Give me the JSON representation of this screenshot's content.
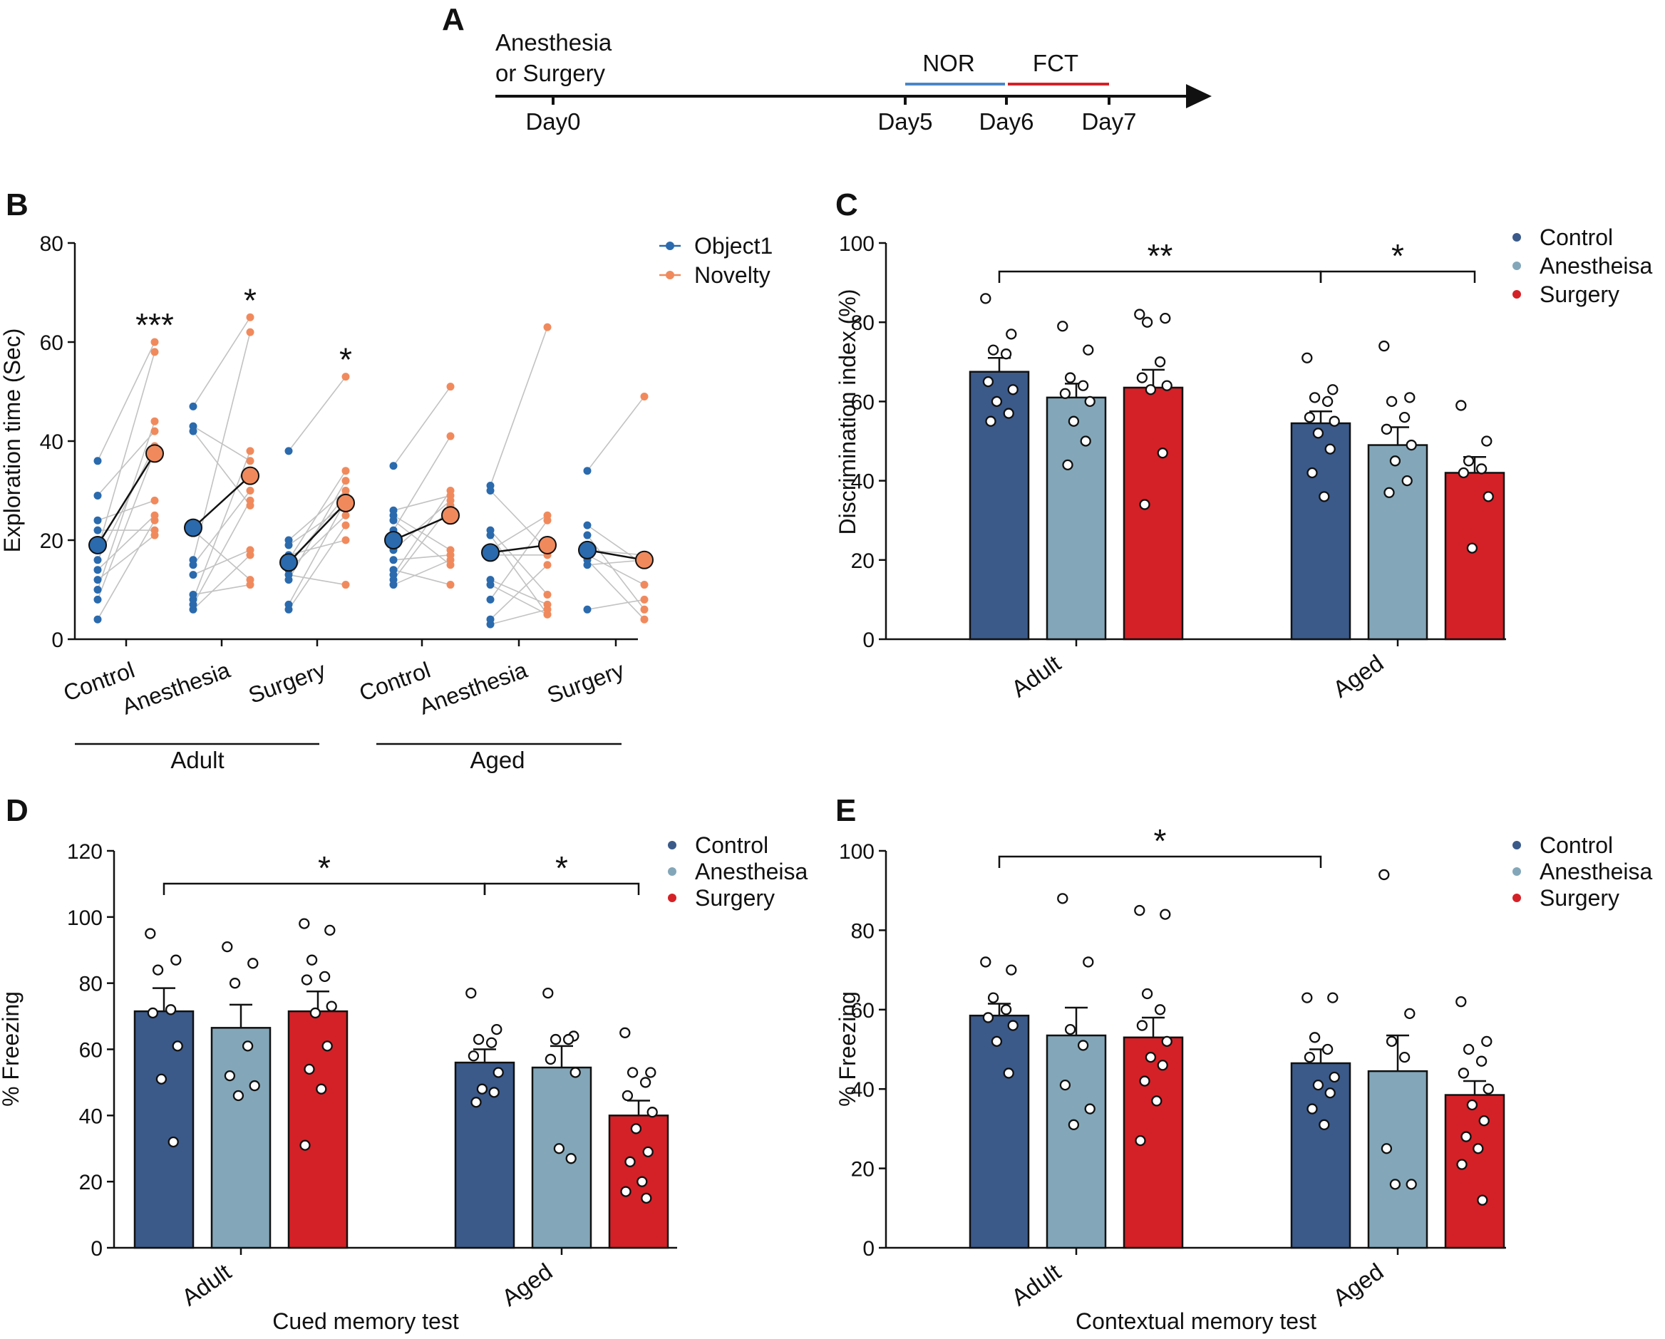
{
  "colors": {
    "control": "#3b5a8a",
    "anesthesia": "#83a7b9",
    "surgery": "#d42127",
    "object1": "#2a6aad",
    "novelty": "#f08a5d",
    "nor_line": "#4a86c8",
    "fct_line": "#d42127",
    "axis": "#111111",
    "pair_line": "#c2c2c2"
  },
  "panelA": {
    "letter": "A",
    "event_line1": "Anesthesia",
    "event_line2": "or Surgery",
    "days": [
      "Day0",
      "Day5",
      "Day6",
      "Day7"
    ],
    "nor_label": "NOR",
    "fct_label": "FCT"
  },
  "chart_data": [
    {
      "panel": "B",
      "type": "scatter",
      "title": "",
      "ylabel": "Exploration time (Sec)",
      "xlabel": "",
      "ylim": [
        0,
        80
      ],
      "yticks": [
        0,
        20,
        40,
        60,
        80
      ],
      "categories": [
        "Control",
        "Anesthesia",
        "Surgery",
        "Control",
        "Anesthesia",
        "Surgery"
      ],
      "age_groups": [
        {
          "label": "Adult",
          "categories": [
            0,
            1,
            2
          ]
        },
        {
          "label": "Aged",
          "categories": [
            3,
            4,
            5
          ]
        }
      ],
      "legend": [
        "Object1",
        "Novelty"
      ],
      "series": [
        {
          "name": "Object1",
          "means": [
            19,
            22.5,
            15.5,
            20,
            17.5,
            18
          ]
        },
        {
          "name": "Novelty",
          "means": [
            37.5,
            33,
            27.5,
            25,
            19,
            16
          ]
        }
      ],
      "paired_points": [
        {
          "object1": [
            36,
            29,
            24,
            22,
            18,
            16,
            14,
            12,
            10,
            8,
            4
          ],
          "novelty": [
            60,
            58,
            44,
            42,
            39,
            38,
            28,
            25,
            24,
            22,
            21
          ]
        },
        {
          "object1": [
            47,
            43,
            42,
            22,
            16,
            15,
            13,
            9,
            8,
            7,
            6
          ],
          "novelty": [
            65,
            62,
            38,
            36,
            30,
            28,
            27,
            18,
            17,
            12,
            11
          ]
        },
        {
          "object1": [
            38,
            20,
            19,
            17,
            16,
            15,
            14,
            13,
            12,
            7,
            6
          ],
          "novelty": [
            53,
            34,
            32,
            30,
            29,
            28,
            27,
            25,
            23,
            20,
            11
          ]
        },
        {
          "object1": [
            35,
            26,
            25,
            24,
            22,
            18,
            16,
            14,
            13,
            12,
            11
          ],
          "novelty": [
            51,
            41,
            30,
            29,
            28,
            27,
            18,
            17,
            16,
            15,
            11
          ]
        },
        {
          "object1": [
            31,
            30,
            22,
            21,
            18,
            17,
            12,
            11,
            8,
            4,
            3
          ],
          "novelty": [
            63,
            25,
            24,
            18,
            17,
            15,
            9,
            7,
            6,
            5,
            5
          ]
        },
        {
          "object1": [
            34,
            23,
            21,
            18,
            17,
            16,
            15,
            6
          ],
          "novelty": [
            49,
            17,
            16,
            15,
            11,
            8,
            6,
            4
          ]
        }
      ],
      "significance": [
        "***",
        "*",
        "*",
        "",
        "",
        ""
      ]
    },
    {
      "panel": "C",
      "type": "bar",
      "title": "",
      "ylabel": "Discrimination index (%)",
      "xlabel": "",
      "ylim": [
        0,
        100
      ],
      "yticks": [
        0,
        20,
        40,
        60,
        80,
        100
      ],
      "categories": [
        "Adult",
        "Aged"
      ],
      "legend": [
        "Control",
        "Anesthesia",
        "Surgery"
      ],
      "series": [
        {
          "name": "Control",
          "values": [
            67.5,
            54.5
          ],
          "errors": [
            3.5,
            3
          ],
          "points": [
            [
              86,
              77,
              73,
              72,
              65,
              63,
              60,
              57,
              55
            ],
            [
              71,
              63,
              61,
              60,
              56,
              55,
              52,
              48,
              42,
              36
            ]
          ]
        },
        {
          "name": "Anesthesia",
          "values": [
            61,
            49
          ],
          "errors": [
            3.5,
            4.5
          ],
          "points": [
            [
              79,
              73,
              66,
              64,
              62,
              60,
              55,
              50,
              44
            ],
            [
              74,
              61,
              60,
              56,
              53,
              49,
              45,
              40,
              37
            ]
          ]
        },
        {
          "name": "Surgery",
          "values": [
            63.5,
            42
          ],
          "errors": [
            4.5,
            4
          ],
          "points": [
            [
              82,
              81,
              80,
              70,
              66,
              64,
              63,
              47,
              34
            ],
            [
              59,
              50,
              45,
              43,
              42,
              36,
              23
            ]
          ]
        }
      ],
      "brackets": [
        {
          "from": "Adult Control",
          "to": "Aged Control",
          "label": "**"
        },
        {
          "from": "Aged Control",
          "to": "Aged Surgery",
          "label": "*"
        }
      ]
    },
    {
      "panel": "D",
      "type": "bar",
      "title": "",
      "ylabel": "% Freezing",
      "xlabel": "Cued memory test",
      "ylim": [
        0,
        120
      ],
      "yticks": [
        0,
        20,
        40,
        60,
        80,
        100,
        120
      ],
      "categories": [
        "Adult",
        "Aged"
      ],
      "legend": [
        "Control",
        "Anesthesia",
        "Surgery"
      ],
      "series": [
        {
          "name": "Control",
          "values": [
            71.5,
            56
          ],
          "errors": [
            7,
            4
          ],
          "points": [
            [
              95,
              87,
              84,
              72,
              71,
              61,
              51,
              32
            ],
            [
              77,
              66,
              63,
              62,
              58,
              53,
              48,
              47,
              44
            ]
          ]
        },
        {
          "name": "Anesthesia",
          "values": [
            66.5,
            54.5
          ],
          "errors": [
            7,
            6.5
          ],
          "points": [
            [
              91,
              86,
              80,
              61,
              52,
              49,
              46
            ],
            [
              77,
              64,
              63,
              63,
              57,
              53,
              30,
              27
            ]
          ]
        },
        {
          "name": "Surgery",
          "values": [
            71.5,
            40
          ],
          "errors": [
            6,
            4.5
          ],
          "points": [
            [
              98,
              96,
              87,
              82,
              81,
              73,
              71,
              61,
              54,
              48,
              31
            ],
            [
              65,
              53,
              53,
              50,
              46,
              41,
              36,
              29,
              26,
              20,
              17,
              15
            ]
          ]
        }
      ],
      "brackets": [
        {
          "from": "Adult Control",
          "to": "Aged Control",
          "label": "*"
        },
        {
          "from": "Aged Control",
          "to": "Aged Surgery",
          "label": "*"
        }
      ]
    },
    {
      "panel": "E",
      "type": "bar",
      "title": "",
      "ylabel": "% Freezing",
      "xlabel": "Contextual memory test",
      "ylim": [
        0,
        100
      ],
      "yticks": [
        0,
        20,
        40,
        60,
        80,
        100
      ],
      "categories": [
        "Adult",
        "Aged"
      ],
      "legend": [
        "Control",
        "Anesthesia",
        "Surgery"
      ],
      "series": [
        {
          "name": "Control",
          "values": [
            58.5,
            46.5
          ],
          "errors": [
            3,
            3.5
          ],
          "points": [
            [
              72,
              70,
              63,
              60,
              58,
              56,
              52,
              44
            ],
            [
              63,
              63,
              53,
              50,
              48,
              43,
              41,
              39,
              35,
              31
            ]
          ]
        },
        {
          "name": "Anesthesia",
          "values": [
            53.5,
            44.5
          ],
          "errors": [
            7,
            9
          ],
          "points": [
            [
              88,
              72,
              55,
              51,
              41,
              35,
              31
            ],
            [
              94,
              59,
              52,
              48,
              25,
              16,
              16
            ]
          ]
        },
        {
          "name": "Surgery",
          "values": [
            53,
            38.5
          ],
          "errors": [
            5,
            3.5
          ],
          "points": [
            [
              85,
              84,
              64,
              60,
              56,
              52,
              48,
              46,
              42,
              37,
              27
            ],
            [
              62,
              52,
              50,
              47,
              44,
              40,
              36,
              32,
              28,
              25,
              21,
              12
            ]
          ]
        }
      ],
      "brackets": [
        {
          "from": "Adult Control",
          "to": "Aged Control",
          "label": "*"
        }
      ]
    }
  ],
  "panelB": {
    "letter": "B",
    "ylabel": "Exploration time (Sec)",
    "legend_object1": "Object1",
    "legend_novelty": "Novelty",
    "xticks": [
      "Control",
      "Anesthesia",
      "Surgery",
      "Control",
      "Anesthesia",
      "Surgery"
    ],
    "group_adult": "Adult",
    "group_aged": "Aged"
  },
  "panelC": {
    "letter": "C",
    "ylabel": "Discrimination index (%)",
    "legend": [
      "Control",
      "Anesthesia",
      "Surgery"
    ],
    "legend_display": [
      "Control",
      "Anestheisa",
      "Surgery"
    ],
    "group_adult": "Adult",
    "group_aged": "Aged"
  },
  "panelD": {
    "letter": "D",
    "ylabel": "% Freezing",
    "xlabel": "Cued memory test",
    "legend_display": [
      "Control",
      "Anestheisa",
      "Surgery"
    ],
    "group_adult": "Adult",
    "group_aged": "Aged"
  },
  "panelE": {
    "letter": "E",
    "ylabel": "% Freezing",
    "xlabel": "Contextual memory test",
    "legend_display": [
      "Control",
      "Anestheisa",
      "Surgery"
    ],
    "group_adult": "Adult",
    "group_aged": "Aged"
  }
}
